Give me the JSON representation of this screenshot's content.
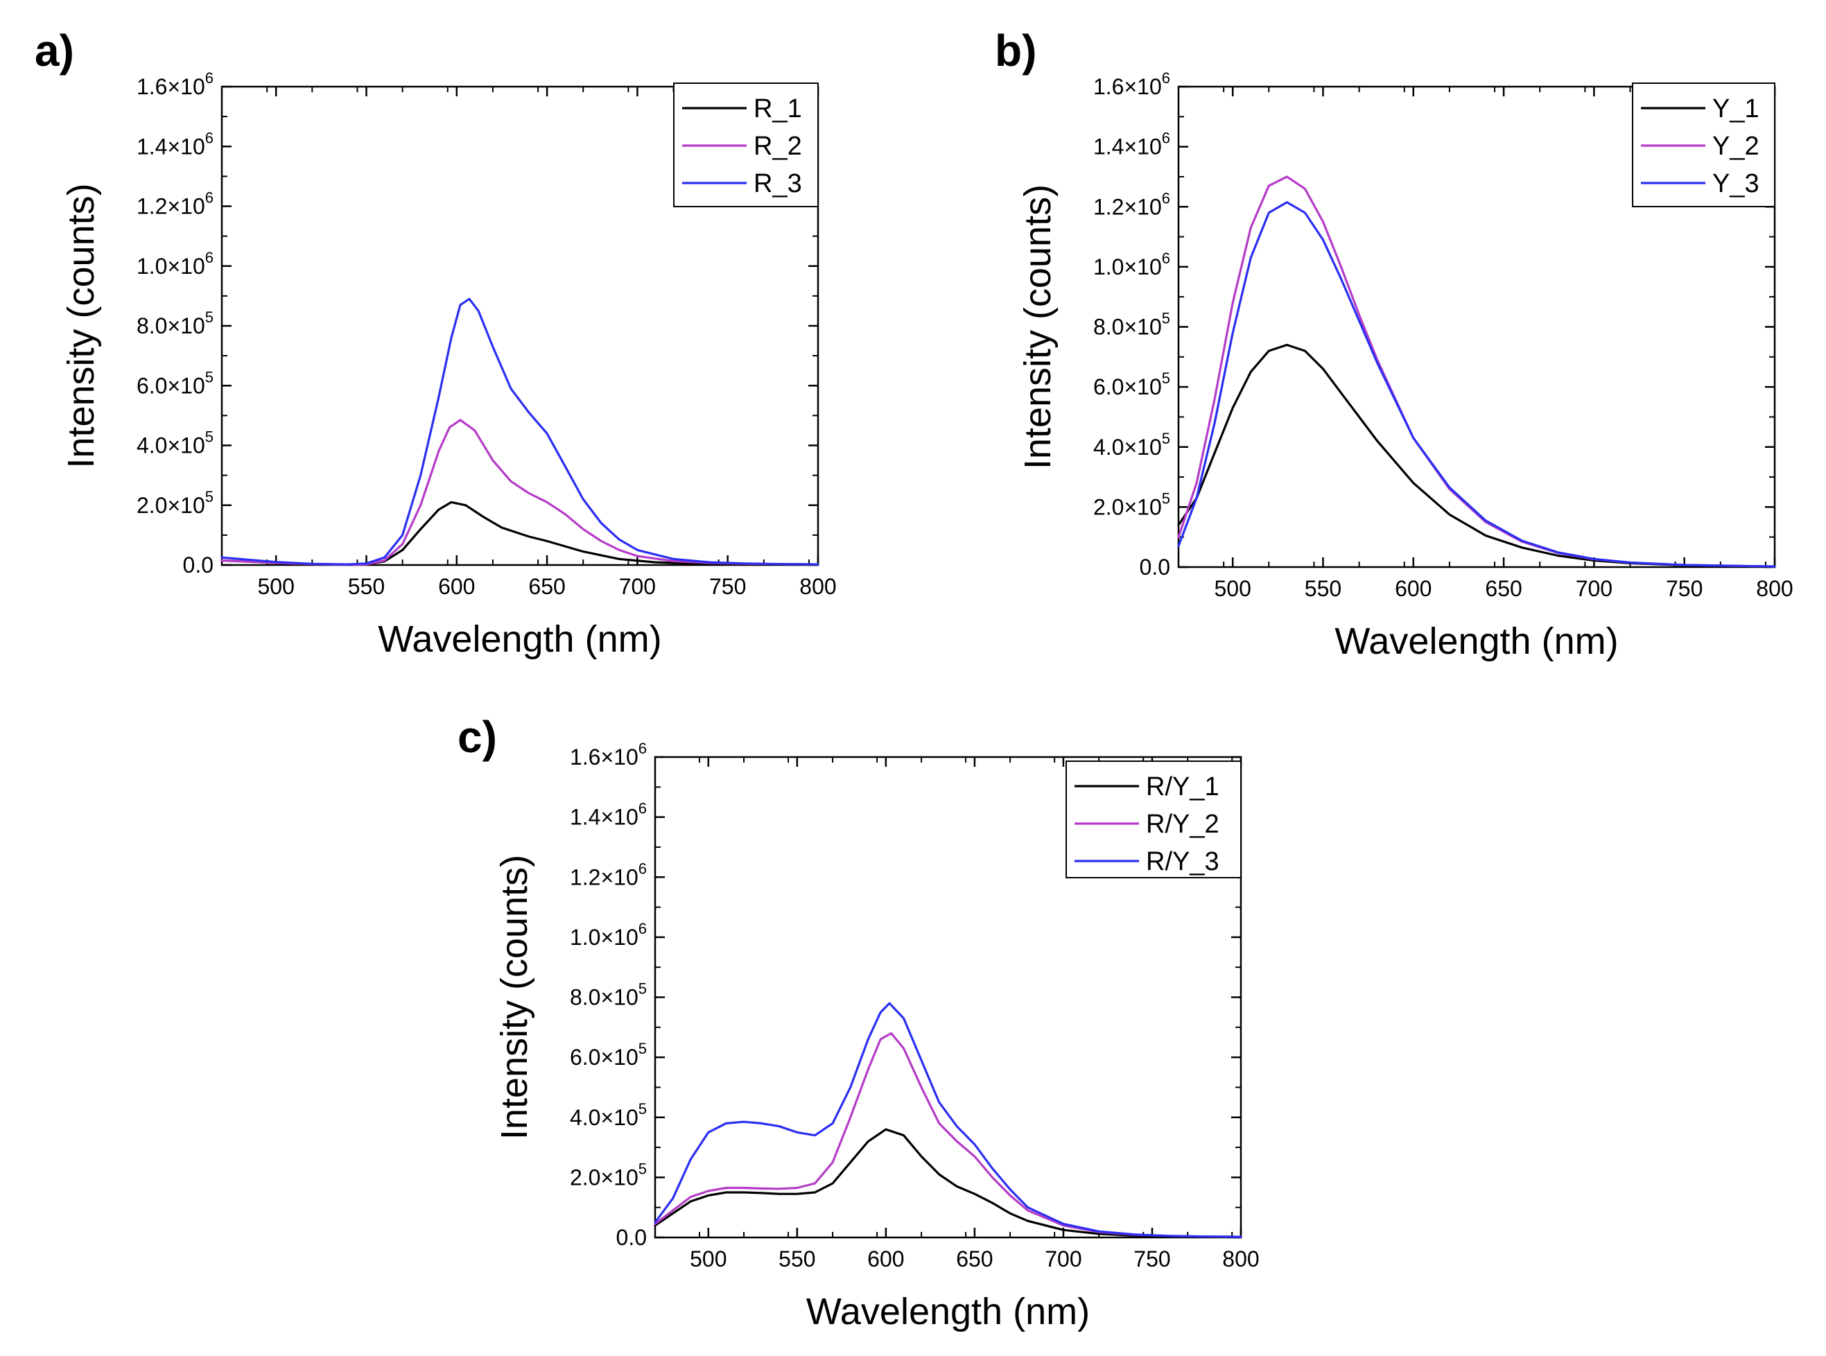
{
  "chart_data": [
    {
      "type": "line",
      "panel_label": "a)",
      "xlabel": "Wavelength (nm)",
      "ylabel": "Intensity (counts)",
      "xlim": [
        470,
        800
      ],
      "ylim": [
        0,
        1600000
      ],
      "xticks": [
        500,
        550,
        600,
        650,
        700,
        750,
        800
      ],
      "yticks": [
        {
          "value": 0,
          "base": "0.0",
          "exp": ""
        },
        {
          "value": 200000,
          "base": "2.0×10",
          "exp": "5"
        },
        {
          "value": 400000,
          "base": "4.0×10",
          "exp": "5"
        },
        {
          "value": 600000,
          "base": "6.0×10",
          "exp": "5"
        },
        {
          "value": 800000,
          "base": "8.0×10",
          "exp": "5"
        },
        {
          "value": 1000000,
          "base": "1.0×10",
          "exp": "6"
        },
        {
          "value": 1200000,
          "base": "1.2×10",
          "exp": "6"
        },
        {
          "value": 1400000,
          "base": "1.4×10",
          "exp": "6"
        },
        {
          "value": 1600000,
          "base": "1.6×10",
          "exp": "6"
        }
      ],
      "legend_position": "top-right",
      "series": [
        {
          "name": "R_1",
          "color": "#000000",
          "x": [
            470,
            500,
            520,
            540,
            550,
            560,
            570,
            580,
            590,
            597,
            605,
            615,
            625,
            640,
            650,
            670,
            690,
            710,
            730,
            750,
            770,
            800
          ],
          "y": [
            15000,
            7000,
            3000,
            1000,
            2000,
            12000,
            50000,
            120000,
            185000,
            210000,
            200000,
            160000,
            125000,
            95000,
            80000,
            45000,
            20000,
            9000,
            5000,
            4000,
            3000,
            2000
          ]
        },
        {
          "name": "R_2",
          "color": "#b53cc7",
          "x": [
            470,
            500,
            520,
            540,
            550,
            560,
            570,
            580,
            590,
            596,
            602,
            610,
            620,
            630,
            640,
            650,
            660,
            670,
            680,
            690,
            700,
            720,
            740,
            760,
            780,
            800
          ],
          "y": [
            15000,
            7000,
            3000,
            1000,
            2000,
            15000,
            70000,
            200000,
            380000,
            460000,
            485000,
            450000,
            350000,
            280000,
            240000,
            210000,
            170000,
            120000,
            80000,
            50000,
            30000,
            13000,
            7000,
            4000,
            3000,
            2000
          ]
        },
        {
          "name": "R_3",
          "color": "#2b2ef2",
          "x": [
            470,
            500,
            520,
            540,
            550,
            560,
            570,
            580,
            590,
            597,
            602,
            607,
            612,
            620,
            630,
            640,
            650,
            660,
            670,
            680,
            690,
            700,
            720,
            740,
            760,
            780,
            800
          ],
          "y": [
            25000,
            10000,
            4000,
            2000,
            5000,
            25000,
            100000,
            300000,
            560000,
            760000,
            870000,
            890000,
            850000,
            730000,
            590000,
            510000,
            440000,
            330000,
            220000,
            140000,
            85000,
            50000,
            20000,
            9000,
            5000,
            3000,
            2000
          ]
        }
      ]
    },
    {
      "type": "line",
      "panel_label": "b)",
      "xlabel": "Wavelength (nm)",
      "ylabel": "Intensity (counts)",
      "xlim": [
        470,
        800
      ],
      "ylim": [
        0,
        1600000
      ],
      "xticks": [
        500,
        550,
        600,
        650,
        700,
        750,
        800
      ],
      "yticks": [
        {
          "value": 0,
          "base": "0.0",
          "exp": ""
        },
        {
          "value": 200000,
          "base": "2.0×10",
          "exp": "5"
        },
        {
          "value": 400000,
          "base": "4.0×10",
          "exp": "5"
        },
        {
          "value": 600000,
          "base": "6.0×10",
          "exp": "5"
        },
        {
          "value": 800000,
          "base": "8.0×10",
          "exp": "5"
        },
        {
          "value": 1000000,
          "base": "1.0×10",
          "exp": "6"
        },
        {
          "value": 1200000,
          "base": "1.2×10",
          "exp": "6"
        },
        {
          "value": 1400000,
          "base": "1.4×10",
          "exp": "6"
        },
        {
          "value": 1600000,
          "base": "1.6×10",
          "exp": "6"
        }
      ],
      "legend_position": "top-right",
      "series": [
        {
          "name": "Y_1",
          "color": "#000000",
          "x": [
            470,
            480,
            490,
            500,
            510,
            520,
            530,
            540,
            550,
            560,
            570,
            580,
            600,
            620,
            640,
            660,
            680,
            700,
            720,
            750,
            780,
            800
          ],
          "y": [
            140000,
            230000,
            380000,
            530000,
            650000,
            720000,
            740000,
            720000,
            660000,
            580000,
            500000,
            420000,
            280000,
            175000,
            105000,
            65000,
            38000,
            22000,
            13000,
            6000,
            3000,
            2000
          ]
        },
        {
          "name": "Y_2",
          "color": "#b53cc7",
          "x": [
            470,
            480,
            490,
            500,
            510,
            520,
            530,
            540,
            550,
            560,
            570,
            580,
            600,
            620,
            640,
            660,
            680,
            700,
            720,
            750,
            780,
            800
          ],
          "y": [
            100000,
            280000,
            560000,
            880000,
            1130000,
            1270000,
            1300000,
            1260000,
            1150000,
            1000000,
            840000,
            690000,
            430000,
            260000,
            150000,
            85000,
            47000,
            26000,
            15000,
            7000,
            4000,
            2000
          ]
        },
        {
          "name": "Y_3",
          "color": "#2b2ef2",
          "x": [
            470,
            480,
            490,
            500,
            510,
            520,
            530,
            540,
            550,
            560,
            570,
            580,
            600,
            620,
            640,
            660,
            680,
            700,
            720,
            750,
            780,
            800
          ],
          "y": [
            70000,
            230000,
            480000,
            780000,
            1030000,
            1180000,
            1215000,
            1180000,
            1090000,
            960000,
            820000,
            680000,
            430000,
            265000,
            155000,
            88000,
            49000,
            27000,
            15000,
            7000,
            4000,
            2000
          ]
        }
      ]
    },
    {
      "type": "line",
      "panel_label": "c)",
      "xlabel": "Wavelength (nm)",
      "ylabel": "Intensity (counts)",
      "xlim": [
        470,
        800
      ],
      "ylim": [
        0,
        1600000
      ],
      "xticks": [
        500,
        550,
        600,
        650,
        700,
        750,
        800
      ],
      "yticks": [
        {
          "value": 0,
          "base": "0.0",
          "exp": ""
        },
        {
          "value": 200000,
          "base": "2.0×10",
          "exp": "5"
        },
        {
          "value": 400000,
          "base": "4.0×10",
          "exp": "5"
        },
        {
          "value": 600000,
          "base": "6.0×10",
          "exp": "5"
        },
        {
          "value": 800000,
          "base": "8.0×10",
          "exp": "5"
        },
        {
          "value": 1000000,
          "base": "1.0×10",
          "exp": "6"
        },
        {
          "value": 1200000,
          "base": "1.2×10",
          "exp": "6"
        },
        {
          "value": 1400000,
          "base": "1.4×10",
          "exp": "6"
        },
        {
          "value": 1600000,
          "base": "1.6×10",
          "exp": "6"
        }
      ],
      "legend_position": "top-right",
      "series": [
        {
          "name": "R/Y_1",
          "color": "#000000",
          "x": [
            470,
            480,
            490,
            500,
            510,
            520,
            530,
            540,
            550,
            560,
            570,
            580,
            590,
            600,
            610,
            620,
            630,
            640,
            650,
            660,
            670,
            680,
            700,
            720,
            740,
            760,
            780,
            800
          ],
          "y": [
            40000,
            80000,
            120000,
            140000,
            150000,
            150000,
            148000,
            145000,
            145000,
            150000,
            180000,
            250000,
            320000,
            360000,
            340000,
            270000,
            210000,
            170000,
            145000,
            115000,
            80000,
            55000,
            25000,
            12000,
            6000,
            3000,
            2000,
            1000
          ]
        },
        {
          "name": "R/Y_2",
          "color": "#b53cc7",
          "x": [
            470,
            480,
            490,
            500,
            510,
            520,
            530,
            540,
            550,
            560,
            570,
            580,
            590,
            597,
            603,
            610,
            620,
            630,
            640,
            650,
            660,
            670,
            680,
            700,
            720,
            740,
            760,
            780,
            800
          ],
          "y": [
            45000,
            90000,
            135000,
            155000,
            165000,
            165000,
            163000,
            162000,
            165000,
            180000,
            250000,
            400000,
            560000,
            660000,
            680000,
            630000,
            500000,
            380000,
            320000,
            270000,
            200000,
            140000,
            90000,
            40000,
            18000,
            9000,
            5000,
            3000,
            2000
          ]
        },
        {
          "name": "R/Y_3",
          "color": "#2b2ef2",
          "x": [
            470,
            480,
            490,
            500,
            510,
            520,
            530,
            540,
            550,
            560,
            570,
            580,
            590,
            597,
            602,
            610,
            620,
            630,
            640,
            650,
            660,
            670,
            680,
            700,
            720,
            740,
            760,
            780,
            800
          ],
          "y": [
            50000,
            130000,
            260000,
            350000,
            380000,
            385000,
            380000,
            370000,
            350000,
            340000,
            380000,
            500000,
            660000,
            750000,
            780000,
            730000,
            590000,
            450000,
            370000,
            310000,
            230000,
            160000,
            100000,
            45000,
            20000,
            10000,
            5000,
            3000,
            2000
          ]
        }
      ]
    }
  ]
}
